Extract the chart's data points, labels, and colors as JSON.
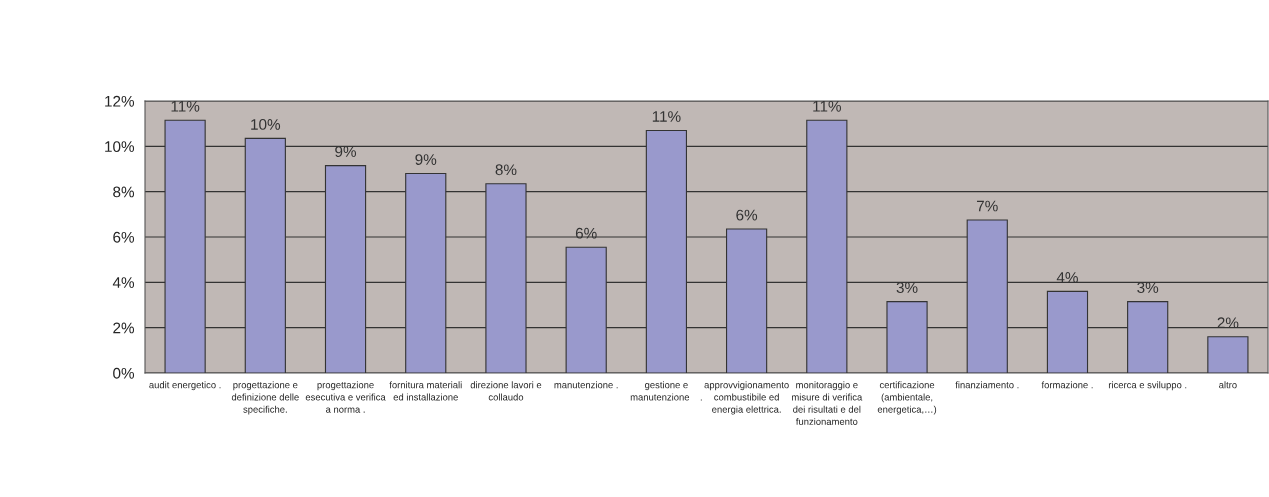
{
  "chart_data": {
    "type": "bar",
    "categories": [
      "audit energetico .",
      "progettazione e\ndefinizione delle\nspecifiche.",
      "progettazione\nesecutiva e verifica\na norma .",
      "fornitura materiali\ned installazione",
      "direzione lavori e\ncollaudo",
      "manutenzione .",
      "gestione e\nmanutenzione    .",
      "approvvigionamento\ncombustibile ed\nenergia elettrica.",
      "monitoraggio e\nmisure di verifica\ndei risultati e del\nfunzionamento",
      "certificazione\n(ambientale,\nenergetica,…)",
      "finanziamento .",
      "formazione .",
      "ricerca e sviluppo .",
      "altro"
    ],
    "values": [
      11.15,
      10.35,
      9.15,
      8.8,
      8.35,
      5.55,
      10.7,
      6.35,
      11.15,
      3.15,
      6.75,
      3.6,
      3.15,
      1.6
    ],
    "value_labels": [
      "11%",
      "10%",
      "9%",
      "9%",
      "8%",
      "6%",
      "11%",
      "6%",
      "11%",
      "3%",
      "7%",
      "4%",
      "3%",
      "2%"
    ],
    "color": "#9999cc",
    "ylim": [
      0,
      12
    ],
    "yticks": [
      {
        "value": 0,
        "label": "0%"
      },
      {
        "value": 2,
        "label": "2%"
      },
      {
        "value": 4,
        "label": "4%"
      },
      {
        "value": 6,
        "label": "6%"
      },
      {
        "value": 8,
        "label": "8%"
      },
      {
        "value": 10,
        "label": "10%"
      },
      {
        "value": 12,
        "label": "12%"
      }
    ],
    "grid": "y",
    "legend": false
  }
}
